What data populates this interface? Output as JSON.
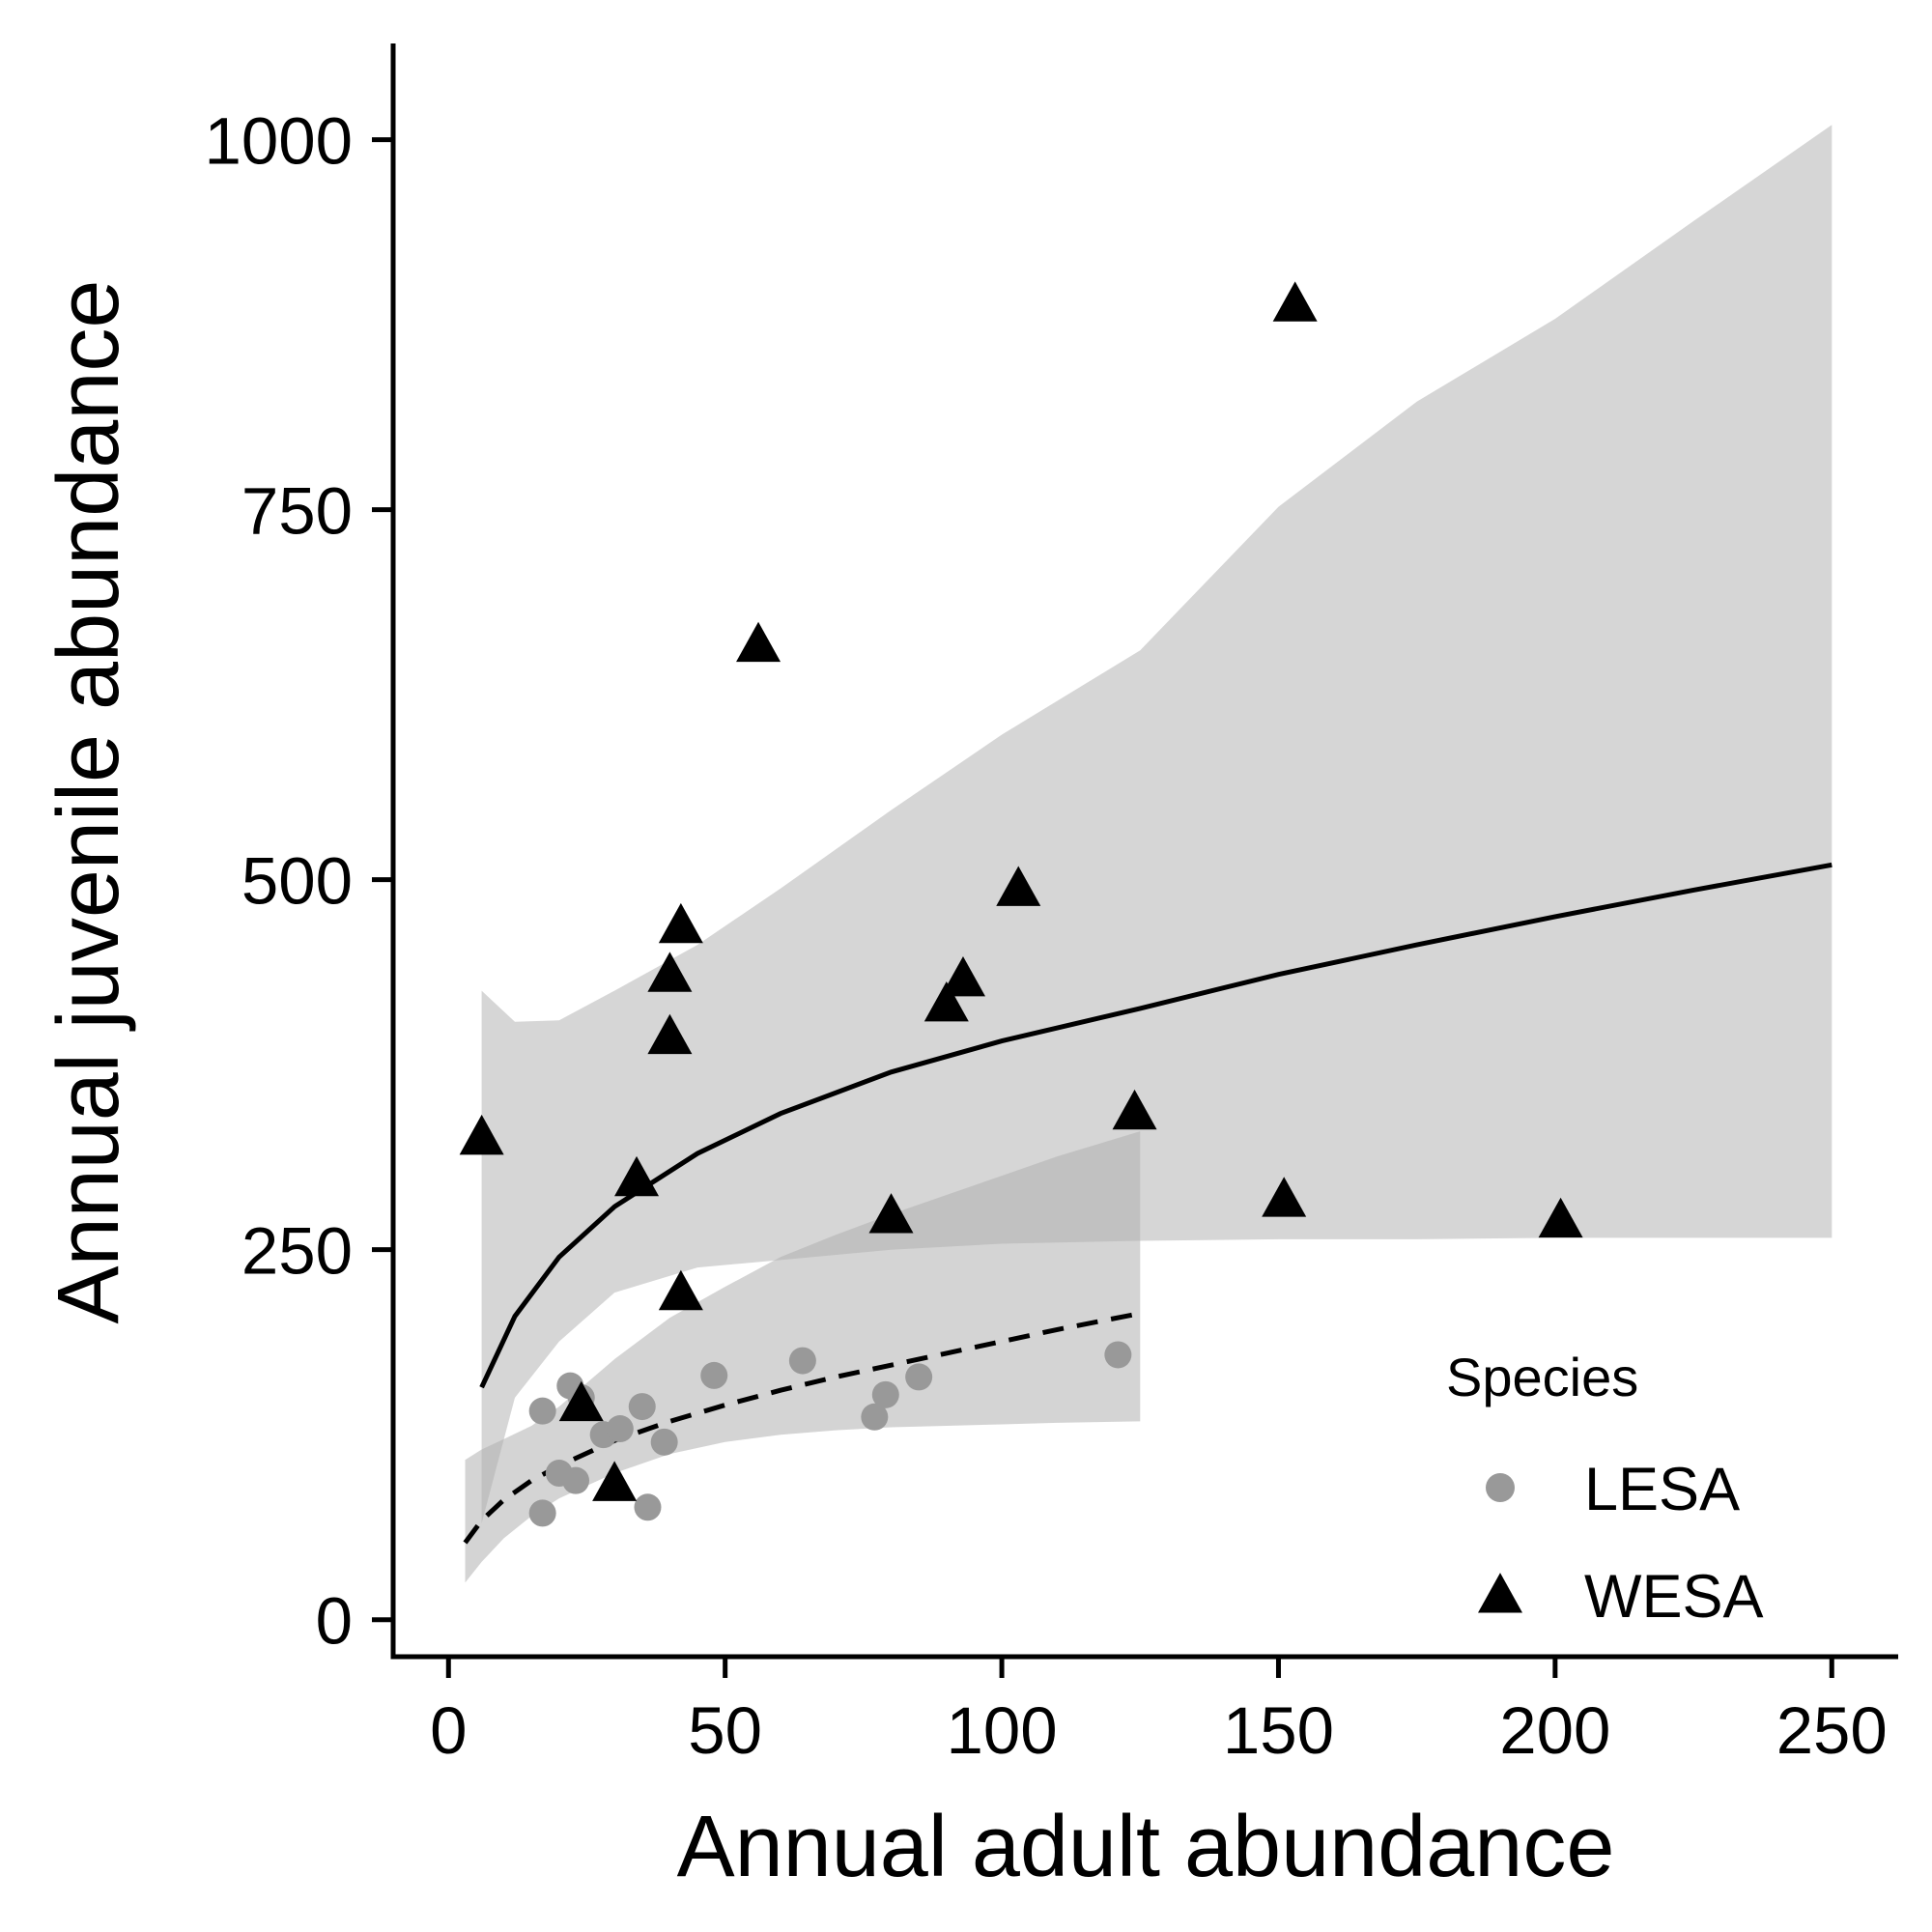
{
  "chart_data": {
    "type": "scatter",
    "xlabel": "Annual adult abundance",
    "ylabel": "Annual juvenile abundance",
    "xlim": [
      -10,
      262
    ],
    "ylim": [
      -25,
      1065
    ],
    "xticks": [
      0,
      50,
      100,
      150,
      200,
      250
    ],
    "yticks": [
      0,
      250,
      500,
      750,
      1000
    ],
    "grid": false,
    "legend": {
      "title": "Species",
      "placement": "bottom-right",
      "entries": [
        {
          "label": "LESA",
          "shape": "circle",
          "color": "#999999"
        },
        {
          "label": "WESA",
          "shape": "triangle",
          "color": "#000000"
        }
      ]
    },
    "series": [
      {
        "name": "WESA",
        "shape": "triangle",
        "color": "#000000",
        "points": [
          [
            6,
            325
          ],
          [
            56,
            658
          ],
          [
            153,
            888
          ],
          [
            103,
            493
          ],
          [
            42,
            468
          ],
          [
            40,
            435
          ],
          [
            93,
            432
          ],
          [
            90,
            415
          ],
          [
            40,
            393
          ],
          [
            124,
            342
          ],
          [
            34,
            297
          ],
          [
            80,
            272
          ],
          [
            151,
            283
          ],
          [
            201,
            269
          ],
          [
            42,
            220
          ],
          [
            24,
            145
          ],
          [
            30,
            91
          ]
        ],
        "fit": {
          "line_style": "solid",
          "x": [
            6,
            12,
            20,
            30,
            45,
            60,
            80,
            100,
            125,
            150,
            175,
            200,
            225,
            250
          ],
          "y": [
            157,
            205,
            245,
            279,
            315,
            342,
            370,
            391,
            413,
            436,
            456,
            475,
            493,
            510
          ],
          "ci_lower": [
            65,
            150,
            188,
            221,
            238,
            243,
            250,
            254,
            256,
            257,
            257,
            258,
            258,
            258
          ],
          "ci_upper": [
            425,
            404,
            405,
            425,
            456,
            494,
            547,
            598,
            655,
            752,
            823,
            879,
            945,
            1010
          ],
          "ci_fill": "#d6d6d6"
        }
      },
      {
        "name": "LESA",
        "shape": "circle",
        "color": "#999999",
        "points": [
          [
            17,
            141
          ],
          [
            22,
            158
          ],
          [
            24,
            150
          ],
          [
            17,
            72
          ],
          [
            20,
            99
          ],
          [
            23,
            94
          ],
          [
            28,
            125
          ],
          [
            31,
            129
          ],
          [
            35,
            144
          ],
          [
            39,
            120
          ],
          [
            36,
            76
          ],
          [
            48,
            165
          ],
          [
            64,
            175
          ],
          [
            77,
            137
          ],
          [
            79,
            152
          ],
          [
            85,
            164
          ],
          [
            121,
            179
          ]
        ],
        "fit": {
          "line_style": "dashed",
          "x": [
            3,
            6,
            10,
            15,
            20,
            30,
            40,
            50,
            60,
            70,
            80,
            90,
            100,
            110,
            125
          ],
          "y": [
            52,
            67,
            81,
            94,
            104,
            121,
            134,
            145,
            155,
            164,
            172,
            180,
            188,
            196,
            207
          ],
          "ci_lower": [
            25,
            39,
            55,
            70,
            82,
            99,
            112,
            120,
            125,
            128,
            130,
            131,
            132,
            133,
            134
          ],
          "ci_upper": [
            108,
            115,
            122,
            131,
            144,
            176,
            204,
            225,
            245,
            260,
            274,
            287,
            300,
            313,
            330
          ],
          "ci_fill": "#b0b0b0"
        }
      }
    ]
  }
}
